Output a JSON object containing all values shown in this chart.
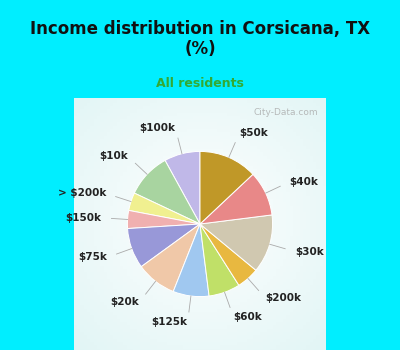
{
  "title": "Income distribution in Corsicana, TX\n(%)",
  "subtitle": "All residents",
  "title_color": "#111111",
  "subtitle_color": "#33aa33",
  "background_cyan": "#00eeff",
  "watermark": "City-Data.com",
  "slices": [
    {
      "label": "$100k",
      "value": 8,
      "color": "#c0b8e8"
    },
    {
      "label": "$10k",
      "value": 10,
      "color": "#a8d4a0"
    },
    {
      "label": "> $200k",
      "value": 4,
      "color": "#f0f090"
    },
    {
      "label": "$150k",
      "value": 4,
      "color": "#f0b0b0"
    },
    {
      "label": "$75k",
      "value": 9,
      "color": "#9898d8"
    },
    {
      "label": "$20k",
      "value": 9,
      "color": "#f0c8a8"
    },
    {
      "label": "$125k",
      "value": 8,
      "color": "#a0c8f0"
    },
    {
      "label": "$60k",
      "value": 7,
      "color": "#c0e068"
    },
    {
      "label": "$200k",
      "value": 5,
      "color": "#e8b840"
    },
    {
      "label": "$30k",
      "value": 13,
      "color": "#d0c8b0"
    },
    {
      "label": "$40k",
      "value": 10,
      "color": "#e88888"
    },
    {
      "label": "$50k",
      "value": 13,
      "color": "#c09828"
    }
  ],
  "label_fontsize": 7.5,
  "label_color": "#222222",
  "title_fontsize": 12,
  "subtitle_fontsize": 9
}
